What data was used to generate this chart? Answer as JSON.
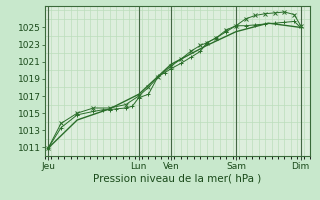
{
  "background_color": "#c8e8cc",
  "plot_bg_color": "#ddeedd",
  "grid_color": "#aaccaa",
  "grid_minor_color": "#bbddbb",
  "line_color": "#2a6e2a",
  "marker_color": "#2a6e2a",
  "xlabel": "Pression niveau de la mer( hPa )",
  "xlabel_fontsize": 7.5,
  "tick_fontsize": 6.5,
  "ylim": [
    1010.0,
    1027.5
  ],
  "yticks": [
    1011,
    1013,
    1015,
    1017,
    1019,
    1021,
    1023,
    1025
  ],
  "xlim": [
    0,
    8.2
  ],
  "day_labels": [
    "Jeu",
    "Lun",
    "Ven",
    "Sam",
    "Dim"
  ],
  "day_positions": [
    0.1,
    2.9,
    3.9,
    5.9,
    7.9
  ],
  "vline_color": "#446644",
  "vline_positions": [
    0.1,
    2.9,
    3.9,
    5.9,
    7.9
  ],
  "series1_x": [
    0.1,
    0.5,
    1.0,
    1.5,
    1.8,
    2.0,
    2.2,
    2.5,
    2.7,
    2.9,
    3.2,
    3.5,
    3.7,
    3.9,
    4.2,
    4.5,
    4.8,
    5.0,
    5.3,
    5.6,
    5.9,
    6.2,
    6.5,
    6.8,
    7.1,
    7.4,
    7.7,
    7.9
  ],
  "series1_y": [
    1010.9,
    1013.3,
    1014.8,
    1015.2,
    1015.4,
    1015.4,
    1015.5,
    1015.6,
    1015.8,
    1016.8,
    1017.2,
    1019.3,
    1019.7,
    1020.2,
    1020.8,
    1021.5,
    1022.2,
    1023.2,
    1023.8,
    1024.5,
    1025.2,
    1025.2,
    1025.3,
    1025.4,
    1025.5,
    1025.6,
    1025.7,
    1025.0
  ],
  "series2_x": [
    0.1,
    0.5,
    1.0,
    1.5,
    2.0,
    2.5,
    2.9,
    3.2,
    3.5,
    3.9,
    4.2,
    4.5,
    4.8,
    5.0,
    5.3,
    5.6,
    5.9,
    6.2,
    6.5,
    6.8,
    7.1,
    7.4,
    7.7,
    7.9
  ],
  "series2_y": [
    1010.9,
    1013.8,
    1015.0,
    1015.6,
    1015.6,
    1016.0,
    1017.0,
    1018.0,
    1019.2,
    1020.5,
    1021.3,
    1022.2,
    1022.9,
    1023.2,
    1023.8,
    1024.7,
    1025.2,
    1026.0,
    1026.4,
    1026.6,
    1026.7,
    1026.8,
    1026.5,
    1025.2
  ],
  "series3_x": [
    0.1,
    1.0,
    2.0,
    2.9,
    3.9,
    5.0,
    5.9,
    6.9,
    7.9
  ],
  "series3_y": [
    1010.9,
    1014.2,
    1015.5,
    1017.2,
    1020.7,
    1022.9,
    1024.5,
    1025.5,
    1025.0
  ]
}
